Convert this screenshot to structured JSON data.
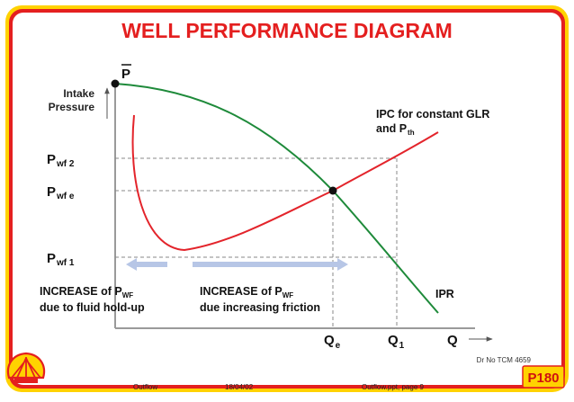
{
  "title": "WELL PERFORMANCE DIAGRAM",
  "axes": {
    "y_label_line1": "Intake",
    "y_label_line2": "Pressure",
    "y_top": "P",
    "x_label": "Q"
  },
  "y_marks": [
    {
      "main": "P",
      "sub": "wf 2"
    },
    {
      "main": "P",
      "sub": "wf e"
    },
    {
      "main": "P",
      "sub": "wf 1"
    }
  ],
  "x_marks": [
    {
      "main": "Q",
      "sub": "e"
    },
    {
      "main": "Q",
      "sub": "1"
    }
  ],
  "ipc_label": {
    "line1": "IPC for constant GLR",
    "line2_main": "and P",
    "line2_sub": "th"
  },
  "ipr_label": "IPR",
  "notes": {
    "left": {
      "line1_main": "INCREASE of P",
      "line1_sub": "WF",
      "line2": "due to fluid hold-up"
    },
    "right": {
      "line1_main": "INCREASE of P",
      "line1_sub": "WF",
      "line2": "due increasing friction"
    }
  },
  "drawing_ref": "Dr No TCM 4659",
  "footer": {
    "left": "Outflow",
    "date": "18/04/02",
    "right": "Outflow.ppt, page 9"
  },
  "badge": "P180",
  "colors": {
    "frame_yellow": "#ffd200",
    "frame_red": "#e41f1f",
    "ipr_green": "#1e8a3a",
    "ipc_red": "#e3242b",
    "arrow_blue": "#b7c6e6"
  }
}
